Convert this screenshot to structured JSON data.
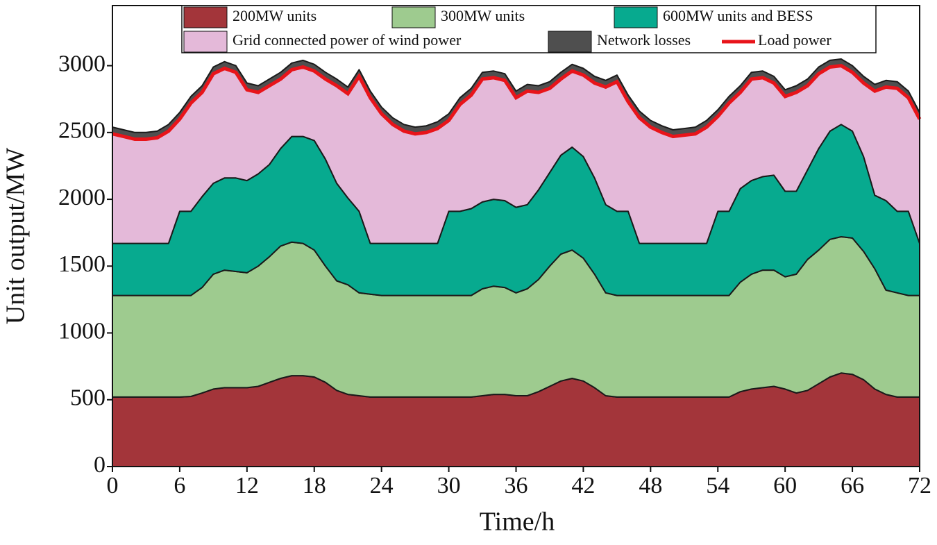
{
  "chart_data": {
    "type": "stacked-area",
    "xlabel": "Time/h",
    "ylabel": "Unit output/MW",
    "xlim": [
      0,
      72
    ],
    "xticks": [
      0,
      6,
      12,
      18,
      24,
      30,
      36,
      42,
      48,
      54,
      60,
      66,
      72
    ],
    "ylim": [
      0,
      3450
    ],
    "yticks": [
      0,
      500,
      1000,
      1500,
      2000,
      2500,
      3000
    ],
    "x": [
      0,
      1,
      2,
      3,
      4,
      5,
      6,
      7,
      8,
      9,
      10,
      11,
      12,
      13,
      14,
      15,
      16,
      17,
      18,
      19,
      20,
      21,
      22,
      23,
      24,
      25,
      26,
      27,
      28,
      29,
      30,
      31,
      32,
      33,
      34,
      35,
      36,
      37,
      38,
      39,
      40,
      41,
      42,
      43,
      44,
      45,
      46,
      47,
      48,
      49,
      50,
      51,
      52,
      53,
      54,
      55,
      56,
      57,
      58,
      59,
      60,
      61,
      62,
      63,
      64,
      65,
      66,
      67,
      68,
      69,
      70,
      71,
      72
    ],
    "series": [
      {
        "name": "200MW units",
        "color": "#a3353a",
        "values": [
          520,
          520,
          520,
          520,
          520,
          520,
          520,
          525,
          550,
          580,
          590,
          590,
          590,
          600,
          630,
          660,
          680,
          680,
          670,
          630,
          570,
          540,
          530,
          520,
          520,
          520,
          520,
          520,
          520,
          520,
          520,
          520,
          520,
          530,
          540,
          540,
          530,
          530,
          560,
          600,
          640,
          660,
          640,
          590,
          530,
          520,
          520,
          520,
          520,
          520,
          520,
          520,
          520,
          520,
          520,
          520,
          560,
          580,
          590,
          600,
          580,
          550,
          570,
          620,
          670,
          700,
          690,
          650,
          580,
          540,
          520,
          520,
          520
        ]
      },
      {
        "name": "300MW units",
        "color": "#9ecb8f",
        "values": [
          760,
          760,
          760,
          760,
          760,
          760,
          760,
          755,
          790,
          860,
          880,
          870,
          860,
          900,
          940,
          990,
          1000,
          990,
          950,
          870,
          820,
          820,
          770,
          770,
          760,
          760,
          760,
          760,
          760,
          760,
          760,
          760,
          760,
          800,
          810,
          800,
          770,
          800,
          840,
          900,
          950,
          960,
          920,
          850,
          770,
          760,
          760,
          760,
          760,
          760,
          760,
          760,
          760,
          760,
          760,
          760,
          820,
          860,
          880,
          870,
          840,
          890,
          980,
          1000,
          1030,
          1020,
          1020,
          960,
          900,
          780,
          780,
          760,
          760
        ]
      },
      {
        "name": "600MW units and BESS",
        "color": "#07aa8f",
        "values": [
          390,
          390,
          390,
          390,
          390,
          390,
          630,
          630,
          680,
          680,
          690,
          700,
          690,
          690,
          690,
          730,
          790,
          800,
          820,
          800,
          730,
          650,
          610,
          380,
          390,
          390,
          390,
          390,
          390,
          390,
          630,
          630,
          650,
          650,
          650,
          650,
          640,
          630,
          670,
          700,
          740,
          770,
          760,
          720,
          660,
          630,
          630,
          390,
          390,
          390,
          390,
          390,
          390,
          390,
          630,
          630,
          700,
          700,
          700,
          710,
          640,
          620,
          670,
          760,
          810,
          840,
          800,
          710,
          550,
          670,
          610,
          630,
          390
        ]
      },
      {
        "name": "Grid connected power of wind power",
        "color": "#e4b9d9",
        "values": [
          820,
          800,
          780,
          780,
          790,
          840,
          690,
          810,
          780,
          820,
          820,
          790,
          680,
          610,
          590,
          520,
          500,
          520,
          520,
          600,
          730,
          780,
          1010,
          1090,
          970,
          890,
          840,
          820,
          830,
          860,
          680,
          800,
          850,
          920,
          910,
          900,
          820,
          850,
          730,
          630,
          570,
          570,
          610,
          710,
          880,
          970,
          820,
          940,
          870,
          830,
          800,
          810,
          820,
          870,
          710,
          810,
          720,
          760,
          740,
          690,
          710,
          740,
          630,
          560,
          480,
          440,
          440,
          550,
          780,
          850,
          920,
          850,
          930
        ]
      },
      {
        "name": "Network losses",
        "color": "#4f4f4f",
        "values": [
          50,
          50,
          50,
          50,
          50,
          50,
          50,
          50,
          50,
          50,
          50,
          50,
          50,
          50,
          50,
          50,
          50,
          50,
          50,
          50,
          50,
          50,
          50,
          50,
          50,
          50,
          50,
          50,
          50,
          50,
          50,
          50,
          50,
          50,
          50,
          50,
          50,
          50,
          50,
          50,
          50,
          50,
          50,
          50,
          50,
          50,
          50,
          50,
          50,
          50,
          50,
          50,
          50,
          50,
          50,
          50,
          50,
          50,
          50,
          50,
          50,
          50,
          50,
          50,
          50,
          50,
          50,
          50,
          50,
          50,
          50,
          50,
          50
        ]
      },
      {
        "name": "Load power",
        "type": "line",
        "color": "#e8141a",
        "values": [
          2490,
          2470,
          2450,
          2450,
          2460,
          2510,
          2600,
          2720,
          2800,
          2940,
          2980,
          2950,
          2820,
          2800,
          2850,
          2900,
          2970,
          2990,
          2960,
          2900,
          2850,
          2790,
          2920,
          2760,
          2640,
          2560,
          2510,
          2490,
          2500,
          2530,
          2590,
          2710,
          2780,
          2900,
          2910,
          2890,
          2760,
          2810,
          2800,
          2830,
          2900,
          2960,
          2930,
          2870,
          2840,
          2880,
          2730,
          2610,
          2540,
          2500,
          2470,
          2480,
          2490,
          2540,
          2620,
          2720,
          2800,
          2900,
          2910,
          2870,
          2770,
          2800,
          2850,
          2940,
          2990,
          3000,
          2950,
          2870,
          2810,
          2840,
          2830,
          2760,
          2600
        ]
      }
    ]
  }
}
